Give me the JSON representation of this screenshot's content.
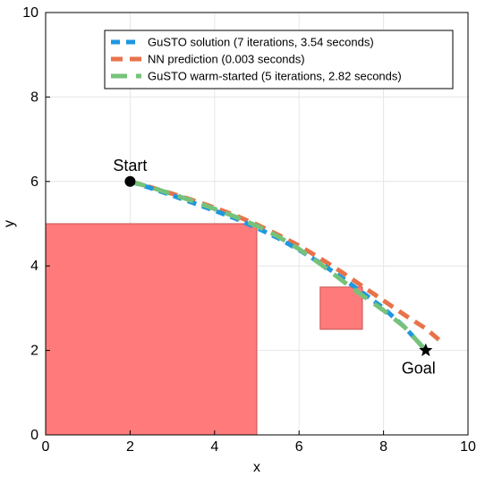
{
  "chart_data": {
    "type": "line",
    "xlabel": "x",
    "ylabel": "y",
    "xlim": [
      0,
      10
    ],
    "ylim": [
      0,
      10
    ],
    "xticks": [
      0,
      2,
      4,
      6,
      8,
      10
    ],
    "yticks": [
      0,
      2,
      4,
      6,
      8,
      10
    ],
    "grid": true,
    "legend_position": "top-right",
    "obstacles": [
      {
        "x": [
          0,
          5
        ],
        "y": [
          0,
          5
        ],
        "color": "#ff7b7b"
      },
      {
        "x": [
          6.5,
          7.5
        ],
        "y": [
          2.5,
          3.5
        ],
        "color": "#ff7b7b"
      }
    ],
    "series": [
      {
        "name": "GuSTO solution (7 iterations, 3.54 seconds)",
        "color": "#1f97e0",
        "dash": "10 7",
        "x": [
          2.0,
          2.5,
          3.0,
          3.5,
          4.0,
          4.5,
          5.0,
          5.5,
          6.0,
          6.5,
          7.0,
          7.5,
          8.0,
          8.5,
          9.0
        ],
        "y": [
          6.0,
          5.84,
          5.67,
          5.49,
          5.31,
          5.12,
          4.9,
          4.66,
          4.38,
          4.07,
          3.73,
          3.37,
          3.0,
          2.55,
          2.0
        ]
      },
      {
        "name": "NN prediction (0.003 seconds)",
        "color": "#e8734a",
        "dash": "13 8",
        "x": [
          2.0,
          2.5,
          3.0,
          3.5,
          4.0,
          4.5,
          5.0,
          5.5,
          6.0,
          6.5,
          7.0,
          7.5,
          8.0,
          8.5,
          9.0,
          9.35
        ],
        "y": [
          6.0,
          5.86,
          5.71,
          5.55,
          5.38,
          5.19,
          4.98,
          4.74,
          4.48,
          4.18,
          3.86,
          3.52,
          3.18,
          2.84,
          2.52,
          2.22
        ]
      },
      {
        "name": "GuSTO warm-started (5 iterations, 2.82 seconds)",
        "color": "#76c27a",
        "dash": "18 10",
        "x": [
          2.0,
          2.5,
          3.0,
          3.5,
          4.0,
          4.5,
          5.0,
          5.5,
          6.0,
          6.5,
          7.0,
          7.5,
          8.0,
          8.5,
          9.0
        ],
        "y": [
          6.0,
          5.86,
          5.7,
          5.53,
          5.35,
          5.16,
          4.95,
          4.7,
          4.4,
          4.05,
          3.67,
          3.3,
          2.95,
          2.55,
          2.0
        ]
      }
    ],
    "annotations": [
      {
        "text": "Start",
        "x": 2.0,
        "y": 6.0,
        "marker": "circle"
      },
      {
        "text": "Goal",
        "x": 9.0,
        "y": 2.0,
        "marker": "star"
      }
    ]
  }
}
